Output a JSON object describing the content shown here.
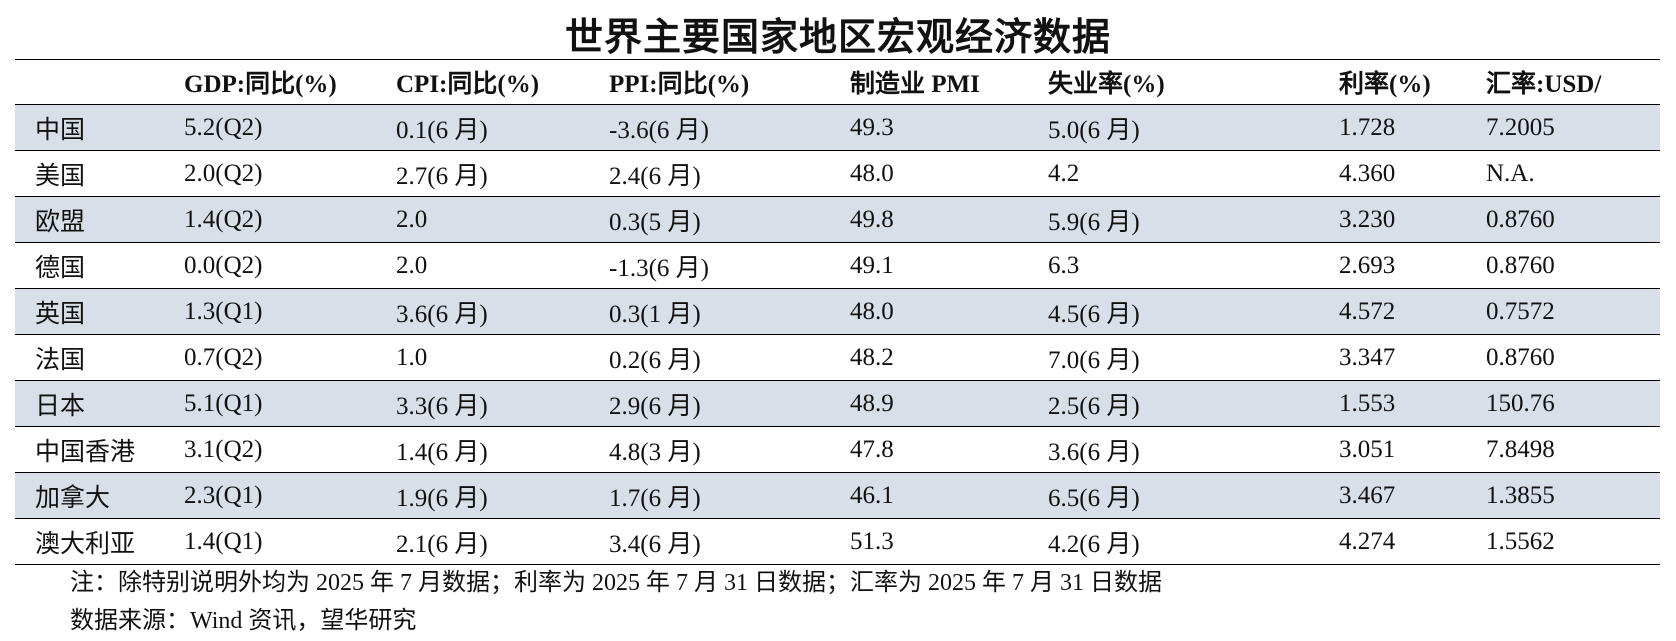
{
  "title": "世界主要国家地区宏观经济数据",
  "table": {
    "headers": [
      "GDP:同比(%)",
      "CPI:同比(%)",
      "PPI:同比(%)",
      "制造业 PMI",
      "失业率(%)",
      "利率(%)",
      "汇率:USD/"
    ],
    "rows": [
      [
        "中国",
        "5.2(Q2)",
        "0.1(6 月)",
        "-3.6(6 月)",
        "49.3",
        "5.0(6 月)",
        "1.728",
        "7.2005"
      ],
      [
        "美国",
        "2.0(Q2)",
        "2.7(6 月)",
        "2.4(6 月)",
        "48.0",
        "4.2",
        "4.360",
        "N.A."
      ],
      [
        "欧盟",
        "1.4(Q2)",
        "2.0",
        "0.3(5 月)",
        "49.8",
        "5.9(6 月)",
        "3.230",
        "0.8760"
      ],
      [
        "德国",
        "0.0(Q2)",
        "2.0",
        "-1.3(6 月)",
        "49.1",
        "6.3",
        "2.693",
        "0.8760"
      ],
      [
        "英国",
        "1.3(Q1)",
        "3.6(6 月)",
        "0.3(1 月)",
        "48.0",
        "4.5(6 月)",
        "4.572",
        "0.7572"
      ],
      [
        "法国",
        "0.7(Q2)",
        "1.0",
        "0.2(6 月)",
        "48.2",
        "7.0(6 月)",
        "3.347",
        "0.8760"
      ],
      [
        "日本",
        "5.1(Q1)",
        "3.3(6 月)",
        "2.9(6 月)",
        "48.9",
        "2.5(6 月)",
        "1.553",
        "150.76"
      ],
      [
        "中国香港",
        "3.1(Q2)",
        "1.4(6 月)",
        "4.8(3 月)",
        "47.8",
        "3.6(6 月)",
        "3.051",
        "7.8498"
      ],
      [
        "加拿大",
        "2.3(Q1)",
        "1.9(6 月)",
        "1.7(6 月)",
        "46.1",
        "6.5(6 月)",
        "3.467",
        "1.3855"
      ],
      [
        "澳大利亚",
        "1.4(Q1)",
        "2.1(6 月)",
        "3.4(6 月)",
        "51.3",
        "4.2(6 月)",
        "4.274",
        "1.5562"
      ]
    ]
  },
  "notes": [
    "注：除特别说明外均为 2025 年 7 月数据；利率为 2025 年 7 月 31 日数据；汇率为 2025 年 7 月 31 日数据",
    "数据来源：Wind 资讯，望华研究"
  ]
}
